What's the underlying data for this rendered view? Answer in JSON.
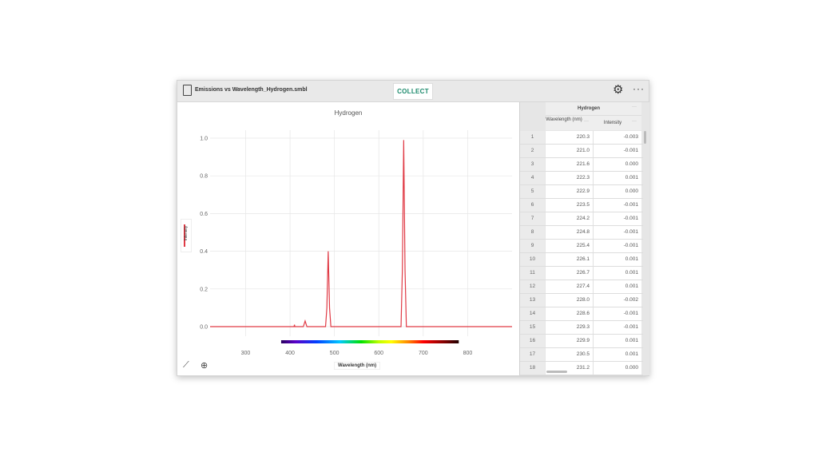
{
  "toolbar": {
    "file_name": "Emissions vs Wavelength_Hydrogen.smbl",
    "collect_label": "COLLECT",
    "icons": [
      "file-icon",
      "gear-icon",
      "more-icon"
    ]
  },
  "graph": {
    "title": "Hydrogen",
    "ylabel": "Intensity",
    "xlabel": "Wavelength (nm)",
    "tools": [
      "graph-options-icon",
      "zoom-icon"
    ]
  },
  "chart_data": {
    "type": "line",
    "title": "Hydrogen",
    "xlabel": "Wavelength (nm)",
    "ylabel": "Intensity",
    "xlim": [
      220,
      900
    ],
    "ylim": [
      0,
      1.05
    ],
    "xticks": [
      "300",
      "400",
      "500",
      "600",
      "700",
      "800"
    ],
    "yticks": [
      "0.0",
      "0.2",
      "0.4",
      "0.6",
      "0.8",
      "1.0"
    ],
    "grid": true,
    "color": "#e03a45",
    "series": [
      {
        "x": [
          220,
          400,
          409,
          410,
          411,
          430,
          434,
          438,
          480,
          483,
          486,
          489,
          492,
          650,
          653,
          656,
          659,
          662,
          900
        ],
        "y": [
          0,
          0,
          0,
          0.01,
          0,
          0,
          0.03,
          0,
          0,
          0.1,
          0.4,
          0.1,
          0,
          0,
          0.3,
          0.99,
          0.3,
          0,
          0
        ]
      }
    ],
    "spectrum_bar": {
      "from_nm": 380,
      "to_nm": 780
    }
  },
  "table": {
    "group": "Hydrogen",
    "columns": [
      "Wavelength (nm)",
      "Intensity"
    ],
    "rows": [
      [
        "1",
        "220.3",
        "-0.003"
      ],
      [
        "2",
        "221.0",
        "-0.001"
      ],
      [
        "3",
        "221.6",
        "0.000"
      ],
      [
        "4",
        "222.3",
        "0.001"
      ],
      [
        "5",
        "222.9",
        "0.000"
      ],
      [
        "6",
        "223.5",
        "-0.001"
      ],
      [
        "7",
        "224.2",
        "-0.001"
      ],
      [
        "8",
        "224.8",
        "-0.001"
      ],
      [
        "9",
        "225.4",
        "-0.001"
      ],
      [
        "10",
        "226.1",
        "0.001"
      ],
      [
        "11",
        "226.7",
        "0.001"
      ],
      [
        "12",
        "227.4",
        "0.001"
      ],
      [
        "13",
        "228.0",
        "-0.002"
      ],
      [
        "14",
        "228.6",
        "-0.001"
      ],
      [
        "15",
        "229.3",
        "-0.001"
      ],
      [
        "16",
        "229.9",
        "0.001"
      ],
      [
        "17",
        "230.5",
        "0.001"
      ],
      [
        "18",
        "231.2",
        "0.000"
      ]
    ]
  }
}
